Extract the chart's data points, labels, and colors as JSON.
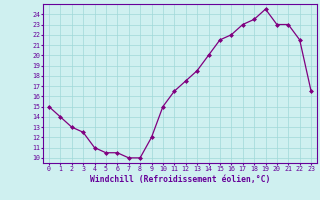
{
  "x": [
    0,
    1,
    2,
    3,
    4,
    5,
    6,
    7,
    8,
    9,
    10,
    11,
    12,
    13,
    14,
    15,
    16,
    17,
    18,
    19,
    20,
    21,
    22,
    23
  ],
  "y": [
    15,
    14,
    13,
    12.5,
    11,
    10.5,
    10.5,
    10,
    10,
    12,
    15,
    16.5,
    17.5,
    18.5,
    20,
    21.5,
    22,
    23,
    23.5,
    24.5,
    23,
    23,
    21.5,
    16.5
  ],
  "line_color": "#800080",
  "marker": "D",
  "marker_size": 2,
  "bg_color": "#cff0f0",
  "grid_color": "#a0d8d8",
  "xlabel": "Windchill (Refroidissement éolien,°C)",
  "xlim": [
    -0.5,
    23.5
  ],
  "ylim": [
    9.5,
    25.0
  ],
  "xticks": [
    0,
    1,
    2,
    3,
    4,
    5,
    6,
    7,
    8,
    9,
    10,
    11,
    12,
    13,
    14,
    15,
    16,
    17,
    18,
    19,
    20,
    21,
    22,
    23
  ],
  "yticks": [
    10,
    11,
    12,
    13,
    14,
    15,
    16,
    17,
    18,
    19,
    20,
    21,
    22,
    23,
    24
  ],
  "tick_fontsize": 4.8,
  "xlabel_fontsize": 5.8,
  "label_color": "#660099",
  "spine_color": "#660099",
  "linewidth": 0.9
}
